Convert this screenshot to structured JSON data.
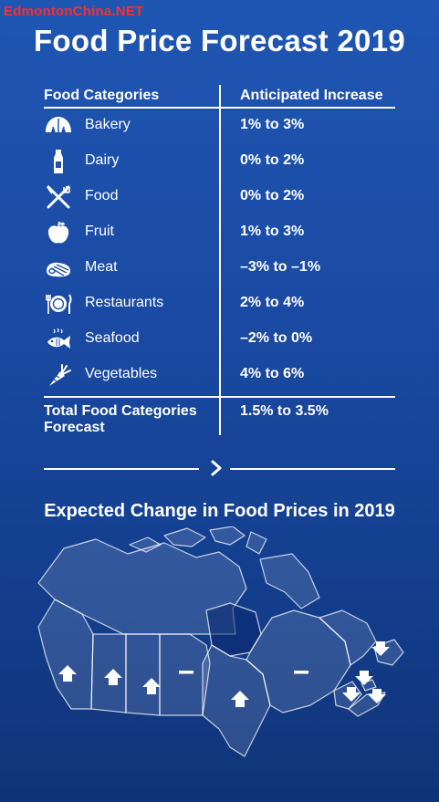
{
  "watermark": "EdmontonChina.NET",
  "title": "Food Price Forecast 2019",
  "table": {
    "col_category": "Food Categories",
    "col_increase": "Anticipated Increase",
    "rows": [
      {
        "icon": "bread-icon",
        "category": "Bakery",
        "range": "1% to 3%"
      },
      {
        "icon": "milk-bottle-icon",
        "category": "Dairy",
        "range": "0% to 2%"
      },
      {
        "icon": "fork-knife-icon",
        "category": "Food",
        "range": "0% to 2%"
      },
      {
        "icon": "apple-icon",
        "category": "Fruit",
        "range": "1% to 3%"
      },
      {
        "icon": "steak-icon",
        "category": "Meat",
        "range": "–3% to –1%"
      },
      {
        "icon": "plate-cutlery-icon",
        "category": "Restaurants",
        "range": "2% to 4%"
      },
      {
        "icon": "fish-icon",
        "category": "Seafood",
        "range": "–2% to 0%"
      },
      {
        "icon": "carrot-icon",
        "category": "Vegetables",
        "range": "4% to 6%"
      }
    ],
    "total_label": "Total Food Categories Forecast",
    "total_range": "1.5% to 3.5%"
  },
  "map": {
    "title": "Expected Change in Food Prices in 2019",
    "regions": [
      {
        "name": "British Columbia",
        "trend": "up"
      },
      {
        "name": "Alberta",
        "trend": "up"
      },
      {
        "name": "Saskatchewan",
        "trend": "up"
      },
      {
        "name": "Manitoba",
        "trend": "flat"
      },
      {
        "name": "Ontario",
        "trend": "up"
      },
      {
        "name": "Quebec",
        "trend": "flat"
      },
      {
        "name": "Newfoundland and Labrador",
        "trend": "down"
      },
      {
        "name": "New Brunswick",
        "trend": "down"
      },
      {
        "name": "Prince Edward Island",
        "trend": "down"
      },
      {
        "name": "Nova Scotia",
        "trend": "down"
      }
    ]
  },
  "colors": {
    "background_top": "#1f56b3",
    "background_bottom": "#0f3478",
    "watermark": "#ff2d2d",
    "text": "#ffffff"
  }
}
